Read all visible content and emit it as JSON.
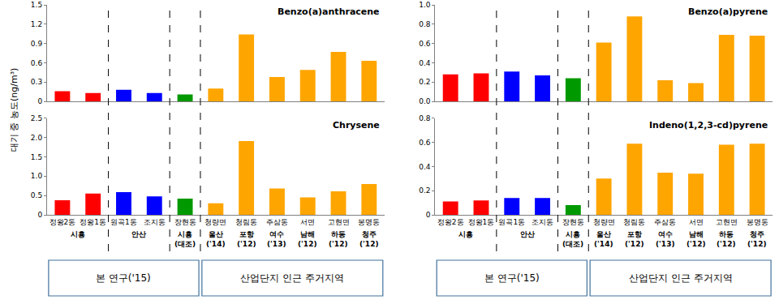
{
  "chart_data": [
    {
      "type": "bar",
      "title": "Benzo(a)anthracene",
      "categories": [
        "정왕2동",
        "정왕1동",
        "원곡1동",
        "조지동",
        "장현동",
        "청량면",
        "청림동",
        "주삼동",
        "서면",
        "고현면",
        "봉명동"
      ],
      "values": [
        0.16,
        0.13,
        0.18,
        0.13,
        0.11,
        0.2,
        1.04,
        0.38,
        0.49,
        0.77,
        0.63
      ],
      "colors": [
        "#ff0000",
        "#ff0000",
        "#0000ff",
        "#0000ff",
        "#009900",
        "#ffa500",
        "#ffa500",
        "#ffa500",
        "#ffa500",
        "#ffa500",
        "#ffa500"
      ],
      "ylim": [
        0,
        1.5
      ],
      "yticks": [
        0,
        0.3,
        0.6,
        0.9,
        1.2,
        1.5
      ],
      "grid": false,
      "tick_labels": "y"
    },
    {
      "type": "bar",
      "title": "Benzo(a)pyrene",
      "categories": [
        "정왕2동",
        "정왕1동",
        "원곡1동",
        "조지동",
        "장현동",
        "청량면",
        "청림동",
        "주삼동",
        "서면",
        "고현면",
        "봉명동"
      ],
      "values": [
        0.28,
        0.29,
        0.31,
        0.27,
        0.24,
        0.61,
        0.88,
        0.22,
        0.19,
        0.69,
        0.68
      ],
      "colors": [
        "#ff0000",
        "#ff0000",
        "#0000ff",
        "#0000ff",
        "#009900",
        "#ffa500",
        "#ffa500",
        "#ffa500",
        "#ffa500",
        "#ffa500",
        "#ffa500"
      ],
      "ylim": [
        0,
        1.0
      ],
      "yticks": [
        {
          "value": 0,
          "label": "0.0"
        },
        0.2,
        0.4,
        0.6,
        0.8,
        {
          "value": 1.0,
          "label": "1.0"
        }
      ],
      "grid": false,
      "tick_labels": "y"
    },
    {
      "type": "bar",
      "title": "Chrysene",
      "categories": [
        "정왕2동",
        "정왕1동",
        "원곡1동",
        "조지동",
        "장현동",
        "청량면",
        "청림동",
        "주삼동",
        "서면",
        "고현면",
        "봉명동"
      ],
      "values": [
        0.38,
        0.55,
        0.59,
        0.48,
        0.42,
        0.3,
        1.91,
        0.68,
        0.45,
        0.61,
        0.8
      ],
      "colors": [
        "#ff0000",
        "#ff0000",
        "#0000ff",
        "#0000ff",
        "#009900",
        "#ffa500",
        "#ffa500",
        "#ffa500",
        "#ffa500",
        "#ffa500",
        "#ffa500"
      ],
      "ylim": [
        0,
        2.5
      ],
      "yticks": [
        0,
        0.5,
        {
          "value": 1.0,
          "label": "1.0"
        },
        1.5,
        {
          "value": 2.0,
          "label": "2.0"
        },
        2.5
      ],
      "grid": false
    },
    {
      "type": "bar",
      "title": "Indeno(1,2,3-cd)pyrene",
      "categories": [
        "정왕2동",
        "정왕1동",
        "원곡1동",
        "조지동",
        "장현동",
        "청량면",
        "청림동",
        "주삼동",
        "서면",
        "고현면",
        "봉명동"
      ],
      "values": [
        0.11,
        0.12,
        0.14,
        0.14,
        0.08,
        0.3,
        0.59,
        0.35,
        0.34,
        0.58,
        0.59
      ],
      "colors": [
        "#ff0000",
        "#ff0000",
        "#0000ff",
        "#0000ff",
        "#009900",
        "#ffa500",
        "#ffa500",
        "#ffa500",
        "#ffa500",
        "#ffa500",
        "#ffa500"
      ],
      "ylim": [
        0,
        0.8
      ],
      "yticks": [
        0,
        0.2,
        0.4,
        0.6,
        0.8
      ],
      "grid": false
    }
  ],
  "y_axis_title": "대기 중 농도(ng/m³)",
  "groups": [
    {
      "label": "시흥",
      "categories": [
        "정왕2동",
        "정왕1동"
      ]
    },
    {
      "label": "안산",
      "categories": [
        "원곡1동",
        "조지동"
      ]
    },
    {
      "label": "시흥",
      "sub": "(대조)",
      "categories": [
        "장현동"
      ]
    },
    {
      "label": "울산",
      "sub": "('14)",
      "categories": [
        "청량면"
      ]
    },
    {
      "label": "포항",
      "sub": "('12)",
      "categories": [
        "청림동"
      ]
    },
    {
      "label": "여수",
      "sub": "('13)",
      "categories": [
        "주삼동"
      ]
    },
    {
      "label": "남해",
      "sub": "('12)",
      "categories": [
        "서면"
      ]
    },
    {
      "label": "하동",
      "sub": "('12)",
      "categories": [
        "고현면"
      ]
    },
    {
      "label": "청주",
      "sub": "('12)",
      "categories": [
        "봉명동"
      ]
    }
  ],
  "sections": [
    {
      "label": "본 연구('15)",
      "categories": [
        "정왕2동",
        "정왕1동",
        "원곡1동",
        "조지동",
        "장현동"
      ]
    },
    {
      "label": "산업단지 인근 주거지역",
      "categories": [
        "청량면",
        "청림동",
        "주삼동",
        "서면",
        "고현면",
        "봉명동"
      ]
    }
  ]
}
